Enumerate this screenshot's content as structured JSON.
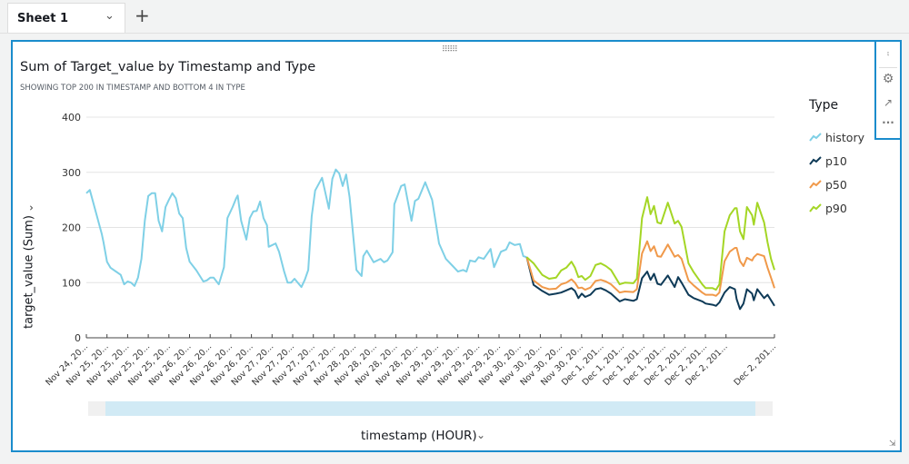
{
  "tabs": {
    "sheet_label": "Sheet 1",
    "add_icon": "+"
  },
  "visual": {
    "title": "Sum of Target_value by Timestamp and Type",
    "subtitle": "SHOWING TOP 200 IN TIMESTAMP AND BOTTOM 4 IN TYPE",
    "toolbar_icons": [
      "collapse-icon",
      "gear-icon",
      "expand-icon",
      "more-icon"
    ]
  },
  "chart_data": {
    "type": "line",
    "title": "Sum of Target_value by Timestamp and Type",
    "xlabel": "timestamp (HOUR)",
    "ylabel": "target_value (Sum)",
    "ylim": [
      0,
      400
    ],
    "yticks": [
      0,
      100,
      200,
      300,
      400
    ],
    "xlim": [
      0,
      200
    ],
    "xtick_labels": [
      "Nov 24, 20...",
      "Nov 25, 20...",
      "Nov 25, 20...",
      "Nov 25, 20...",
      "Nov 25, 20...",
      "Nov 26, 20...",
      "Nov 26, 20...",
      "Nov 26, 20...",
      "Nov 26, 20...",
      "Nov 27, 20...",
      "Nov 27, 20...",
      "Nov 27, 20...",
      "Nov 27, 20...",
      "Nov 28, 20...",
      "Nov 28, 20...",
      "Nov 28, 20...",
      "Nov 28, 20...",
      "Nov 29, 20...",
      "Nov 29, 20...",
      "Nov 29, 20...",
      "Nov 29, 20...",
      "Nov 30, 20...",
      "Nov 30, 20...",
      "Nov 30, 20...",
      "Nov 30, 20...",
      "Dec 1, 201...",
      "Dec 1, 201...",
      "Dec 1, 201...",
      "Dec 1, 201...",
      "Dec 2, 201...",
      "Dec 2, 201...",
      "Dec 2, 201...",
      "Dec 2, 201..."
    ],
    "legend_title": "Type",
    "legend_position": "right",
    "grid": true,
    "series": [
      {
        "name": "history",
        "color": "#7fd0e6",
        "x": [
          0,
          1,
          3,
          4.5,
          5,
          6,
          7,
          10,
          11,
          12,
          13,
          14,
          15,
          16,
          17,
          18,
          19,
          20,
          21,
          22,
          23,
          24,
          25,
          26,
          27,
          28,
          29,
          30,
          32,
          34,
          35,
          36,
          37,
          38.5,
          39,
          40,
          41,
          42.5,
          43.5,
          44,
          45,
          46.5,
          47.5,
          48.5,
          49.5,
          50.5,
          51.5,
          52.5,
          53,
          55,
          56,
          57.5,
          58.5,
          59.5,
          60.5,
          62.5,
          63.5,
          64.5,
          65.5,
          66.5,
          68.5,
          70.5,
          71.5,
          72.5,
          73.5,
          74.5,
          75.5,
          76.5,
          78.5,
          80,
          80.5,
          81.5,
          83.5,
          85.5,
          86.5,
          87.5,
          89,
          89.5,
          91.5,
          92.5,
          94.5,
          95.5,
          96.5,
          98.5,
          100.5,
          102.5,
          104.5,
          106.5,
          108,
          109.5,
          110.5,
          111.5,
          113,
          114,
          115.5,
          117.5,
          118.5,
          120.5,
          122,
          123,
          124.5,
          126,
          127,
          128
        ],
        "y": [
          262,
          268,
          222,
          188,
          173,
          138,
          127,
          114,
          97,
          102,
          100,
          94,
          109,
          143,
          212,
          257,
          262,
          262,
          212,
          193,
          237,
          250,
          262,
          253,
          225,
          217,
          163,
          138,
          122,
          102,
          104,
          109,
          109,
          97,
          107,
          128,
          217,
          237,
          252,
          258,
          212,
          178,
          217,
          229,
          230,
          247,
          217,
          204,
          165,
          171,
          156,
          120,
          100,
          100,
          107,
          92,
          105,
          123,
          220,
          267,
          290,
          234,
          288,
          305,
          298,
          275,
          296,
          255,
          123,
          112,
          148,
          158,
          137,
          143,
          137,
          140,
          155,
          242,
          275,
          278,
          212,
          248,
          252,
          282,
          250,
          171,
          143,
          130,
          120,
          123,
          120,
          140,
          138,
          146,
          143,
          161,
          128,
          156,
          160,
          173,
          168,
          170,
          148,
          146
        ]
      },
      {
        "name": "p10",
        "color": "#0e3a57",
        "x": [
          128,
          130,
          132.5,
          134.5,
          136.5,
          138,
          139.5,
          141,
          142,
          143,
          144,
          145,
          146.5,
          148,
          149.5,
          151,
          152.5,
          155,
          156.5,
          159,
          160,
          161.5,
          163,
          164,
          165,
          166,
          167,
          169,
          171,
          172,
          173,
          175,
          176.5,
          179,
          180,
          182,
          183,
          184,
          185.5,
          187,
          188.5,
          189,
          190,
          191,
          192,
          193.5,
          194,
          195,
          197,
          198,
          199,
          200
        ],
        "y": [
          146,
          96,
          85,
          78,
          80,
          82,
          86,
          90,
          85,
          72,
          80,
          74,
          78,
          88,
          90,
          86,
          80,
          66,
          70,
          67,
          70,
          108,
          120,
          105,
          116,
          98,
          96,
          113,
          92,
          110,
          100,
          78,
          72,
          66,
          62,
          60,
          58,
          64,
          82,
          92,
          88,
          70,
          52,
          62,
          88,
          80,
          68,
          88,
          72,
          78,
          68,
          58
        ]
      },
      {
        "name": "p50",
        "color": "#f0994a",
        "x": [
          128,
          130,
          132.5,
          134.5,
          136.5,
          138,
          139.5,
          141,
          142,
          143,
          144,
          145,
          146.5,
          148,
          149.5,
          151,
          152.5,
          155,
          156.5,
          159,
          160,
          161.5,
          163,
          164,
          165,
          166,
          167,
          169,
          171,
          172,
          173,
          175,
          176.5,
          179,
          180,
          182,
          183,
          184,
          185.5,
          187,
          188.5,
          189,
          190,
          191,
          192,
          193.5,
          194,
          195,
          197,
          198,
          199,
          200
        ],
        "y": [
          146,
          104,
          92,
          88,
          89,
          97,
          100,
          106,
          100,
          90,
          91,
          87,
          91,
          103,
          105,
          102,
          97,
          82,
          84,
          83,
          88,
          153,
          175,
          157,
          166,
          148,
          147,
          169,
          147,
          150,
          143,
          104,
          95,
          82,
          78,
          78,
          76,
          82,
          139,
          156,
          163,
          163,
          139,
          130,
          145,
          140,
          146,
          152,
          148,
          127,
          109,
          90
        ]
      },
      {
        "name": "p90",
        "color": "#a4d625",
        "x": [
          128,
          130,
          132.5,
          134.5,
          136.5,
          138,
          139.5,
          141,
          142,
          143,
          144,
          145,
          146.5,
          148,
          149.5,
          151,
          152.5,
          155,
          156.5,
          159,
          160,
          161.5,
          163,
          164,
          165,
          166,
          167,
          169,
          171,
          172,
          173,
          175,
          176.5,
          179,
          180,
          182,
          183,
          184,
          185.5,
          187,
          188.5,
          189,
          190,
          191,
          192,
          193.5,
          194,
          195,
          197,
          198,
          199,
          200
        ],
        "y": [
          146,
          135,
          114,
          107,
          109,
          122,
          127,
          138,
          127,
          110,
          112,
          105,
          112,
          132,
          135,
          130,
          123,
          97,
          100,
          99,
          107,
          217,
          255,
          224,
          239,
          209,
          207,
          245,
          207,
          212,
          201,
          135,
          119,
          97,
          90,
          90,
          87,
          97,
          193,
          222,
          235,
          235,
          193,
          179,
          237,
          222,
          205,
          245,
          209,
          173,
          143,
          123
        ]
      }
    ]
  }
}
